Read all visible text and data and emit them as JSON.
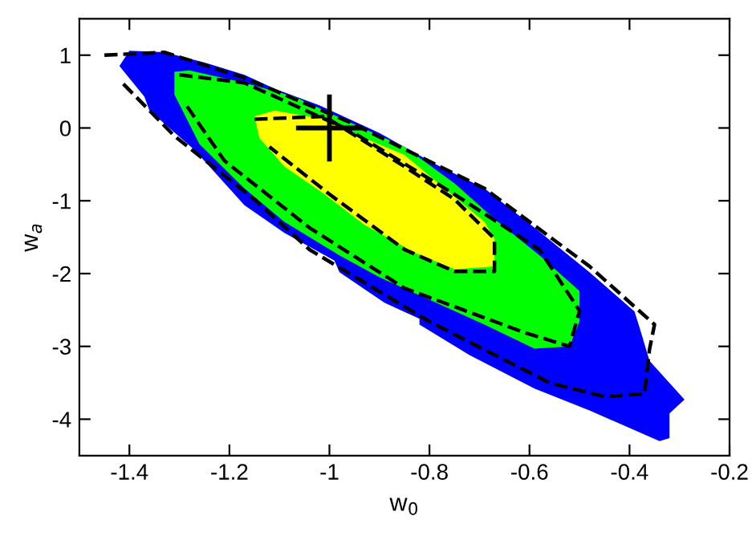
{
  "chart_data": {
    "type": "area",
    "xlabel": "w$_{0}$",
    "ylabel": "w$_{a}$",
    "xlim": [
      -1.5,
      -0.2
    ],
    "ylim": [
      -4.5,
      1.5
    ],
    "xticks": [
      -1.4,
      -1.2,
      -1,
      -0.8,
      -0.6,
      -0.4,
      -0.2
    ],
    "yticks": [
      1,
      0,
      -1,
      -2,
      -3,
      -4
    ],
    "grid": false,
    "series": [
      {
        "type": "area",
        "color": "#0000ff",
        "x": [
          -1.4,
          -1.33,
          -1.24,
          -1.17,
          -1.11,
          -1.02,
          -0.96,
          -0.9,
          -0.79,
          -0.69,
          -0.59,
          -0.48,
          -0.39,
          -0.38,
          -0.36,
          -0.29,
          -0.32,
          -0.32,
          -0.34,
          -0.48,
          -0.59,
          -0.72,
          -0.82,
          -0.82,
          -0.89,
          -0.98,
          -0.99,
          -1.09,
          -1.17,
          -1.27,
          -1.36,
          -1.37,
          -1.42
        ],
        "values": [
          1.06,
          1.04,
          0.88,
          0.73,
          0.54,
          0.31,
          0.12,
          -0.07,
          -0.49,
          -0.83,
          -1.37,
          -1.98,
          -2.52,
          -2.74,
          -3.2,
          -3.73,
          -3.92,
          -4.26,
          -4.3,
          -3.88,
          -3.58,
          -3.12,
          -2.7,
          -2.62,
          -2.4,
          -1.98,
          -1.82,
          -1.44,
          -1.06,
          -0.3,
          0.24,
          0.43,
          0.85
        ]
      },
      {
        "type": "area",
        "color": "#00ff00",
        "x": [
          -1.31,
          -1.28,
          -1.17,
          -1.07,
          -0.96,
          -0.85,
          -0.75,
          -0.67,
          -0.58,
          -0.5,
          -0.5,
          -0.52,
          -0.59,
          -0.69,
          -0.8,
          -0.9,
          -0.98,
          -1.09,
          -1.17,
          -1.26,
          -1.31
        ],
        "values": [
          0.77,
          0.79,
          0.62,
          0.43,
          0.08,
          -0.26,
          -0.76,
          -1.25,
          -1.75,
          -2.24,
          -2.66,
          -3.0,
          -3.03,
          -2.7,
          -2.36,
          -2.05,
          -1.75,
          -1.29,
          -0.83,
          -0.22,
          0.46
        ]
      },
      {
        "type": "area",
        "color": "#ffff00",
        "x": [
          -1.15,
          -1.11,
          -1.01,
          -0.94,
          -0.85,
          -0.77,
          -0.69,
          -0.67,
          -0.67,
          -0.75,
          -0.83,
          -0.93,
          -1.01,
          -1.09,
          -1.14
        ],
        "values": [
          0.16,
          0.24,
          0.12,
          -0.11,
          -0.37,
          -0.83,
          -1.29,
          -1.52,
          -1.9,
          -1.94,
          -1.71,
          -1.33,
          -0.91,
          -0.53,
          -0.14
        ]
      },
      {
        "type": "line",
        "line_style": "dashed",
        "color": "#000000",
        "x": [
          -1.15,
          -1.01,
          -0.85,
          -0.75,
          -0.67,
          -0.67,
          -0.75,
          -0.85,
          -1.0,
          -1.12
        ],
        "values": [
          0.12,
          0.16,
          -0.53,
          -0.98,
          -1.52,
          -1.97,
          -1.97,
          -1.67,
          -0.91,
          -0.26
        ]
      },
      {
        "type": "line",
        "line_style": "dashed",
        "color": "#000000",
        "x": [
          -1.3,
          -1.17,
          -0.96,
          -0.75,
          -0.58,
          -0.5,
          -0.52,
          -0.61,
          -0.85,
          -1.04,
          -1.21,
          -1.29
        ],
        "values": [
          0.73,
          0.62,
          -0.03,
          -0.91,
          -1.67,
          -2.51,
          -3.0,
          -2.81,
          -2.2,
          -1.37,
          -0.45,
          0.35
        ]
      },
      {
        "type": "line",
        "line_style": "dashed",
        "color": "#000000",
        "x": [
          -1.45,
          -1.33,
          -1.17,
          -0.96,
          -0.69,
          -0.48,
          -0.35,
          -0.36,
          -0.37,
          -0.45,
          -0.56,
          -0.8,
          -1.04,
          -1.15,
          -1.31,
          -1.42
        ],
        "values": [
          1.0,
          1.04,
          0.69,
          0.08,
          -0.83,
          -1.9,
          -2.7,
          -3.04,
          -3.65,
          -3.69,
          -3.5,
          -2.66,
          -1.67,
          -0.98,
          -0.11,
          0.66
        ]
      },
      {
        "type": "scatter",
        "marker": "cross",
        "color": "#000000",
        "x": [
          -1
        ],
        "values": [
          0
        ]
      }
    ]
  }
}
